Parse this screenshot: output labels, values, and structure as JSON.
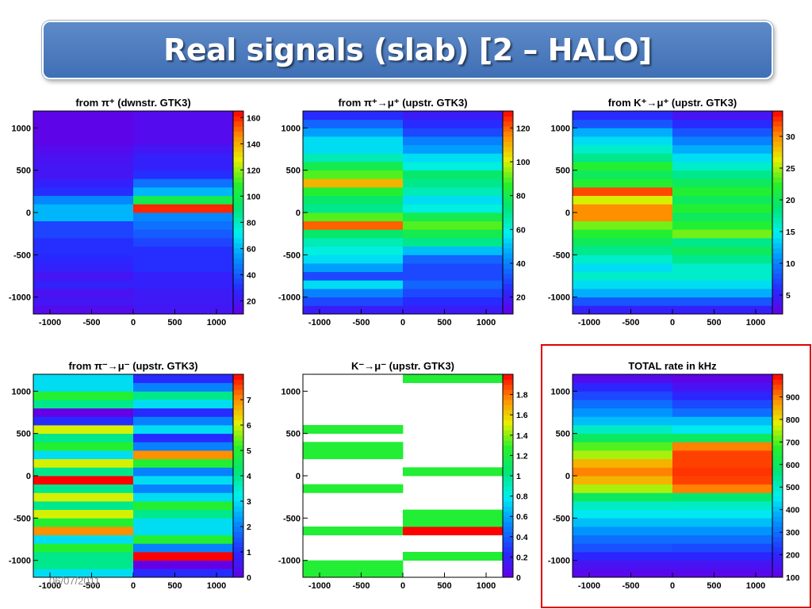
{
  "slide": {
    "title": "Real signals (slab) [2 – HALO]",
    "date": "06/07/2011"
  },
  "chart_data": [
    {
      "type": "heatmap",
      "title": "from π⁺ (dwnstr. GTK3)",
      "xlim": [
        -1200,
        1200
      ],
      "ylim": [
        -1200,
        1200
      ],
      "x_ticks": [
        -1000,
        -500,
        0,
        500,
        1000
      ],
      "y_ticks": [
        -1000,
        -500,
        0,
        500,
        1000
      ],
      "z_range": [
        10,
        165
      ],
      "z_ticks": [
        20,
        40,
        60,
        80,
        100,
        120,
        140,
        160
      ],
      "x_bins": [
        -1200,
        0,
        1200
      ],
      "y_bins": [
        -1200,
        -1100,
        -1000,
        -900,
        -800,
        -700,
        -600,
        -500,
        -400,
        -300,
        -200,
        -100,
        0,
        100,
        200,
        300,
        400,
        500,
        600,
        700,
        800,
        900,
        1000,
        1100,
        1200
      ],
      "values": [
        [
          15,
          20
        ],
        [
          20,
          22
        ],
        [
          18,
          22
        ],
        [
          25,
          25
        ],
        [
          20,
          25
        ],
        [
          25,
          30
        ],
        [
          28,
          30
        ],
        [
          30,
          30
        ],
        [
          30,
          35
        ],
        [
          35,
          40
        ],
        [
          35,
          45
        ],
        [
          60,
          50
        ],
        [
          60,
          160
        ],
        [
          50,
          100
        ],
        [
          30,
          60
        ],
        [
          25,
          45
        ],
        [
          20,
          30
        ],
        [
          20,
          25
        ],
        [
          18,
          25
        ],
        [
          15,
          20
        ],
        [
          12,
          15
        ],
        [
          12,
          15
        ],
        [
          12,
          15
        ],
        [
          12,
          15
        ]
      ]
    },
    {
      "type": "heatmap",
      "title": "from π⁺→μ⁺ (upstr. GTK3)",
      "xlim": [
        -1200,
        1200
      ],
      "ylim": [
        -1200,
        1200
      ],
      "x_ticks": [
        -1000,
        -500,
        0,
        500,
        1000
      ],
      "y_ticks": [
        -1000,
        -500,
        0,
        500,
        1000
      ],
      "z_range": [
        10,
        130
      ],
      "z_ticks": [
        20,
        40,
        60,
        80,
        100,
        120
      ],
      "x_bins": [
        -1200,
        0,
        1200
      ],
      "y_bins": [
        -1200,
        -1100,
        -1000,
        -900,
        -800,
        -700,
        -600,
        -500,
        -400,
        -300,
        -200,
        -100,
        0,
        100,
        200,
        300,
        400,
        500,
        600,
        700,
        800,
        900,
        1000,
        1100,
        1200
      ],
      "values": [
        [
          20,
          20
        ],
        [
          30,
          25
        ],
        [
          40,
          30
        ],
        [
          55,
          35
        ],
        [
          30,
          30
        ],
        [
          45,
          30
        ],
        [
          55,
          35
        ],
        [
          60,
          50
        ],
        [
          65,
          70
        ],
        [
          75,
          80
        ],
        [
          120,
          90
        ],
        [
          90,
          80
        ],
        [
          70,
          60
        ],
        [
          75,
          55
        ],
        [
          85,
          65
        ],
        [
          110,
          70
        ],
        [
          90,
          75
        ],
        [
          80,
          60
        ],
        [
          65,
          55
        ],
        [
          55,
          45
        ],
        [
          55,
          40
        ],
        [
          45,
          30
        ],
        [
          35,
          25
        ],
        [
          25,
          20
        ]
      ]
    },
    {
      "type": "heatmap",
      "title": "from K⁺→μ⁺ (upstr. GTK3)",
      "xlim": [
        -1200,
        1200
      ],
      "ylim": [
        -1200,
        1200
      ],
      "x_ticks": [
        -1000,
        -500,
        0,
        500,
        1000
      ],
      "y_ticks": [
        -1000,
        -500,
        0,
        500,
        1000
      ],
      "z_range": [
        2,
        34
      ],
      "z_ticks": [
        5,
        10,
        15,
        20,
        25,
        30
      ],
      "x_bins": [
        -1200,
        0,
        1200
      ],
      "y_bins": [
        -1200,
        -1100,
        -1000,
        -900,
        -800,
        -700,
        -600,
        -500,
        -400,
        -300,
        -200,
        -100,
        0,
        100,
        200,
        300,
        400,
        500,
        600,
        700,
        800,
        900,
        1000,
        1100,
        1200
      ],
      "values": [
        [
          5,
          5
        ],
        [
          8,
          8
        ],
        [
          12,
          12
        ],
        [
          14,
          14
        ],
        [
          16,
          16
        ],
        [
          14,
          16
        ],
        [
          16,
          18
        ],
        [
          18,
          20
        ],
        [
          20,
          18
        ],
        [
          22,
          24
        ],
        [
          24,
          22
        ],
        [
          30,
          20
        ],
        [
          30,
          22
        ],
        [
          26,
          20
        ],
        [
          32,
          22
        ],
        [
          22,
          20
        ],
        [
          20,
          18
        ],
        [
          22,
          16
        ],
        [
          18,
          14
        ],
        [
          16,
          12
        ],
        [
          14,
          10
        ],
        [
          12,
          8
        ],
        [
          8,
          6
        ],
        [
          6,
          4
        ]
      ]
    },
    {
      "type": "heatmap",
      "title": "from π⁻→μ⁻ (upstr. GTK3)",
      "xlim": [
        -1200,
        1200
      ],
      "ylim": [
        -1200,
        1200
      ],
      "x_ticks": [
        -1000,
        -500,
        0,
        500,
        1000
      ],
      "y_ticks": [
        -1000,
        -500,
        0,
        500,
        1000
      ],
      "z_range": [
        0,
        8
      ],
      "z_ticks": [
        0,
        1,
        2,
        3,
        4,
        5,
        6,
        7
      ],
      "x_bins": [
        -1200,
        0,
        1200
      ],
      "y_bins": [
        -1200,
        -1100,
        -1000,
        -900,
        -800,
        -700,
        -600,
        -500,
        -400,
        -300,
        -200,
        -100,
        0,
        100,
        200,
        300,
        400,
        500,
        600,
        700,
        800,
        900,
        1000,
        1100,
        1200
      ],
      "values": [
        [
          3,
          1
        ],
        [
          4,
          0
        ],
        [
          4,
          8
        ],
        [
          5,
          2
        ],
        [
          3,
          5
        ],
        [
          7,
          3
        ],
        [
          5,
          3
        ],
        [
          6,
          4
        ],
        [
          4,
          5
        ],
        [
          6,
          3
        ],
        [
          4,
          2
        ],
        [
          8,
          3
        ],
        [
          4,
          2
        ],
        [
          6,
          5
        ],
        [
          3,
          7
        ],
        [
          5,
          2
        ],
        [
          4,
          1
        ],
        [
          6,
          3
        ],
        [
          1,
          2
        ],
        [
          0,
          1
        ],
        [
          4,
          3
        ],
        [
          5,
          4
        ],
        [
          3,
          2
        ],
        [
          3,
          1
        ]
      ]
    },
    {
      "type": "heatmap",
      "title": "K⁻→μ⁻ (upstr. GTK3)",
      "xlim": [
        -1200,
        1200
      ],
      "ylim": [
        -1200,
        1200
      ],
      "x_ticks": [
        -1000,
        -500,
        0,
        500,
        1000
      ],
      "y_ticks": [
        -1000,
        -500,
        0,
        500,
        1000
      ],
      "z_range": [
        0,
        2
      ],
      "z_ticks": [
        0,
        0.2,
        0.4,
        0.6,
        0.8,
        1,
        1.2,
        1.4,
        1.6,
        1.8
      ],
      "x_bins": [
        -1200,
        0,
        1200
      ],
      "y_bins": [
        -1200,
        -1100,
        -1000,
        -900,
        -800,
        -700,
        -600,
        -500,
        -400,
        -300,
        -200,
        -100,
        0,
        100,
        200,
        300,
        400,
        500,
        600,
        700,
        800,
        900,
        1000,
        1100,
        1200
      ],
      "values": [
        [
          1,
          0
        ],
        [
          1,
          0
        ],
        [
          0,
          1
        ],
        [
          0,
          0
        ],
        [
          0,
          0
        ],
        [
          1,
          2
        ],
        [
          0,
          1
        ],
        [
          0,
          1
        ],
        [
          0,
          0
        ],
        [
          0,
          0
        ],
        [
          1,
          0
        ],
        [
          0,
          0
        ],
        [
          0,
          1
        ],
        [
          0,
          0
        ],
        [
          1,
          0
        ],
        [
          1,
          0
        ],
        [
          0,
          0
        ],
        [
          1,
          0
        ],
        [
          0,
          0
        ],
        [
          0,
          0
        ],
        [
          0,
          0
        ],
        [
          0,
          0
        ],
        [
          0,
          0
        ],
        [
          0,
          1
        ]
      ]
    },
    {
      "type": "heatmap",
      "title": "TOTAL rate in kHz",
      "xlim": [
        -1200,
        1200
      ],
      "ylim": [
        -1200,
        1200
      ],
      "x_ticks": [
        -1000,
        -500,
        0,
        500,
        1000
      ],
      "y_ticks": [
        -1000,
        -500,
        0,
        500,
        1000
      ],
      "z_range": [
        100,
        1000
      ],
      "z_ticks": [
        100,
        200,
        300,
        400,
        500,
        600,
        700,
        800,
        900
      ],
      "x_bins": [
        -1200,
        0,
        1200
      ],
      "y_bins": [
        -1200,
        -1100,
        -1000,
        -900,
        -800,
        -700,
        -600,
        -500,
        -400,
        -300,
        -200,
        -100,
        0,
        100,
        200,
        300,
        400,
        500,
        600,
        700,
        800,
        900,
        1000,
        1100,
        1200
      ],
      "values": [
        [
          120,
          120
        ],
        [
          150,
          150
        ],
        [
          200,
          200
        ],
        [
          260,
          250
        ],
        [
          300,
          300
        ],
        [
          350,
          350
        ],
        [
          400,
          400
        ],
        [
          450,
          450
        ],
        [
          500,
          500
        ],
        [
          600,
          580
        ],
        [
          750,
          900
        ],
        [
          850,
          950
        ],
        [
          900,
          960
        ],
        [
          850,
          950
        ],
        [
          750,
          950
        ],
        [
          700,
          900
        ],
        [
          600,
          600
        ],
        [
          500,
          450
        ],
        [
          400,
          400
        ],
        [
          350,
          300
        ],
        [
          300,
          250
        ],
        [
          250,
          200
        ],
        [
          200,
          150
        ],
        [
          130,
          110
        ]
      ]
    }
  ]
}
